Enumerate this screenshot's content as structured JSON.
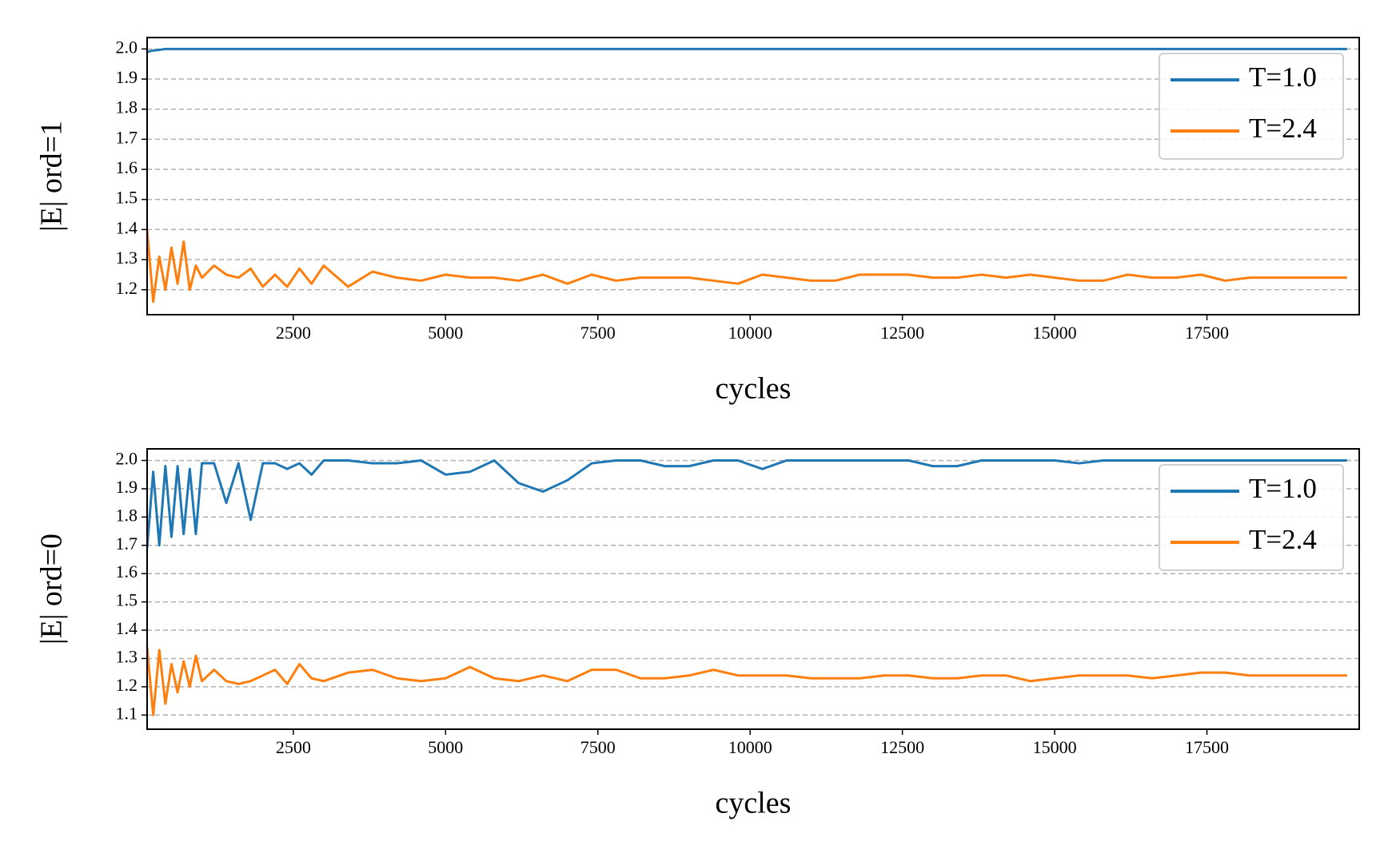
{
  "chart_data": [
    {
      "type": "line",
      "y_label": "|E| ord=1",
      "x_label": "cycles",
      "x": [
        100,
        200,
        300,
        400,
        500,
        600,
        700,
        800,
        900,
        1000,
        1200,
        1400,
        1600,
        1800,
        2000,
        2200,
        2400,
        2600,
        2800,
        3000,
        3400,
        3800,
        4200,
        4600,
        5000,
        5400,
        5800,
        6200,
        6600,
        7000,
        7400,
        7800,
        8200,
        8600,
        9000,
        9400,
        9800,
        10200,
        10600,
        11000,
        11400,
        11800,
        12200,
        12600,
        13000,
        13400,
        13800,
        14200,
        14600,
        15000,
        15400,
        15800,
        16200,
        16600,
        17000,
        17400,
        17800,
        18200,
        18600,
        19000,
        19400,
        19800
      ],
      "series": [
        {
          "name": "T=1.0",
          "color": "#1f77b4",
          "values": [
            1.99,
            1.995,
            1.997,
            2.0,
            2.0,
            2.0,
            2.0,
            2.0,
            2.0,
            2.0,
            2.0,
            2.0,
            2.0,
            2.0,
            2.0,
            2.0,
            2.0,
            2.0,
            2.0,
            2.0,
            2.0,
            2.0,
            2.0,
            2.0,
            2.0,
            2.0,
            2.0,
            2.0,
            2.0,
            2.0,
            2.0,
            2.0,
            2.0,
            2.0,
            2.0,
            2.0,
            2.0,
            2.0,
            2.0,
            2.0,
            2.0,
            2.0,
            2.0,
            2.0,
            2.0,
            2.0,
            2.0,
            2.0,
            2.0,
            2.0,
            2.0,
            2.0,
            2.0,
            2.0,
            2.0,
            2.0,
            2.0,
            2.0,
            2.0,
            2.0,
            2.0,
            2.0
          ]
        },
        {
          "name": "T=2.4",
          "color": "#ff7f0e",
          "values": [
            1.4,
            1.16,
            1.31,
            1.2,
            1.34,
            1.22,
            1.36,
            1.2,
            1.28,
            1.24,
            1.28,
            1.25,
            1.24,
            1.27,
            1.21,
            1.25,
            1.21,
            1.27,
            1.22,
            1.28,
            1.21,
            1.26,
            1.24,
            1.23,
            1.25,
            1.24,
            1.24,
            1.23,
            1.25,
            1.22,
            1.25,
            1.23,
            1.24,
            1.24,
            1.24,
            1.23,
            1.22,
            1.25,
            1.24,
            1.23,
            1.23,
            1.25,
            1.25,
            1.25,
            1.24,
            1.24,
            1.25,
            1.24,
            1.25,
            1.24,
            1.23,
            1.23,
            1.25,
            1.24,
            1.24,
            1.25,
            1.23,
            1.24,
            1.24,
            1.24,
            1.24,
            1.24
          ]
        }
      ],
      "xlim": [
        100,
        20000
      ],
      "xticks": [
        2500,
        5000,
        7500,
        10000,
        12500,
        15000,
        17500
      ],
      "ylim": [
        1.117,
        2.038
      ],
      "yticks": [
        1.2,
        1.3,
        1.4,
        1.5,
        1.6,
        1.7,
        1.8,
        1.9,
        {
          "value": 2,
          "label": "2.0"
        }
      ],
      "grid": true,
      "legend": "upper-right"
    },
    {
      "type": "line",
      "y_label": "|E| ord=0",
      "x_label": "cycles",
      "x": [
        100,
        200,
        300,
        400,
        500,
        600,
        700,
        800,
        900,
        1000,
        1200,
        1400,
        1600,
        1800,
        2000,
        2200,
        2400,
        2600,
        2800,
        3000,
        3400,
        3800,
        4200,
        4600,
        5000,
        5400,
        5800,
        6200,
        6600,
        7000,
        7400,
        7800,
        8200,
        8600,
        9000,
        9400,
        9800,
        10200,
        10600,
        11000,
        11400,
        11800,
        12200,
        12600,
        13000,
        13400,
        13800,
        14200,
        14600,
        15000,
        15400,
        15800,
        16200,
        16600,
        17000,
        17400,
        17800,
        18200,
        18600,
        19000,
        19400,
        19800
      ],
      "series": [
        {
          "name": "T=1.0",
          "color": "#1f77b4",
          "values": [
            1.69,
            1.96,
            1.7,
            1.98,
            1.73,
            1.98,
            1.74,
            1.97,
            1.74,
            1.99,
            1.99,
            1.85,
            1.99,
            1.79,
            1.99,
            1.99,
            1.97,
            1.99,
            1.95,
            2.0,
            2.0,
            1.99,
            1.99,
            2.0,
            1.95,
            1.96,
            2.0,
            1.92,
            1.89,
            1.93,
            1.99,
            2.0,
            2.0,
            1.98,
            1.98,
            2.0,
            2.0,
            1.97,
            2.0,
            2.0,
            2.0,
            2.0,
            2.0,
            2.0,
            1.98,
            1.98,
            2.0,
            2.0,
            2.0,
            2.0,
            1.99,
            2.0,
            2.0,
            2.0,
            2.0,
            2.0,
            2.0,
            2.0,
            2.0,
            2.0,
            2.0,
            2.0
          ]
        },
        {
          "name": "T=2.4",
          "color": "#ff7f0e",
          "values": [
            1.34,
            1.1,
            1.33,
            1.14,
            1.28,
            1.18,
            1.29,
            1.2,
            1.31,
            1.22,
            1.26,
            1.22,
            1.21,
            1.22,
            1.24,
            1.26,
            1.21,
            1.28,
            1.23,
            1.22,
            1.25,
            1.26,
            1.23,
            1.22,
            1.23,
            1.27,
            1.23,
            1.22,
            1.24,
            1.22,
            1.26,
            1.26,
            1.23,
            1.23,
            1.24,
            1.26,
            1.24,
            1.24,
            1.24,
            1.23,
            1.23,
            1.23,
            1.24,
            1.24,
            1.23,
            1.23,
            1.24,
            1.24,
            1.22,
            1.23,
            1.24,
            1.24,
            1.24,
            1.23,
            1.24,
            1.25,
            1.25,
            1.24,
            1.24,
            1.24,
            1.24,
            1.24
          ]
        }
      ],
      "xlim": [
        100,
        20000
      ],
      "xticks": [
        2500,
        5000,
        7500,
        10000,
        12500,
        15000,
        17500
      ],
      "ylim": [
        1.05,
        2.041
      ],
      "yticks": [
        1.1,
        1.2,
        1.3,
        1.4,
        1.5,
        1.6,
        1.7,
        1.8,
        1.9,
        {
          "value": 2,
          "label": "2.0"
        }
      ],
      "grid": true,
      "legend": "upper-right"
    }
  ]
}
